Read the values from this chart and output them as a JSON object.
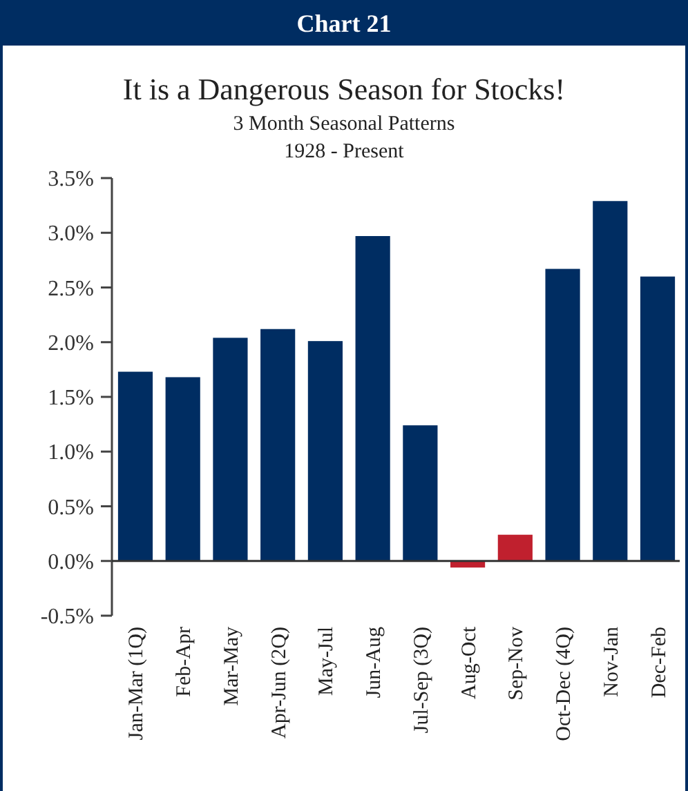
{
  "chart_data": {
    "type": "bar",
    "title": "It is a Dangerous Season for Stocks!",
    "subtitle": "3 Month Seasonal Patterns",
    "annotations": [
      "Chart 21",
      "1928 - Present"
    ],
    "categories": [
      "Jan-Mar (1Q)",
      "Feb-Apr",
      "Mar-May",
      "Apr-Jun (2Q)",
      "May-Jul",
      "Jun-Aug",
      "Jul-Sep (3Q)",
      "Aug-Oct",
      "Sep-Nov",
      "Oct-Dec (4Q)",
      "Nov-Jan",
      "Dec-Feb"
    ],
    "values": [
      1.73,
      1.68,
      2.04,
      2.12,
      2.01,
      2.97,
      1.24,
      -0.06,
      0.24,
      2.67,
      3.29,
      2.6
    ],
    "colors": [
      "#002d62",
      "#002d62",
      "#002d62",
      "#002d62",
      "#002d62",
      "#002d62",
      "#002d62",
      "#c0202e",
      "#c0202e",
      "#002d62",
      "#002d62",
      "#002d62"
    ],
    "ylim": [
      -0.5,
      3.5
    ],
    "yticks": [
      {
        "value": -0.5,
        "label": "-0.5%"
      },
      {
        "value": 0,
        "label": "0.0%"
      },
      {
        "value": 0.5,
        "label": "0.5%"
      },
      {
        "value": 1,
        "label": "1.0%"
      },
      {
        "value": 1.5,
        "label": "1.5%"
      },
      {
        "value": 2,
        "label": "2.0%"
      },
      {
        "value": 2.5,
        "label": "2.5%"
      },
      {
        "value": 3,
        "label": "3.0%"
      },
      {
        "value": 3.5,
        "label": "3.5%"
      }
    ],
    "grid": false
  }
}
